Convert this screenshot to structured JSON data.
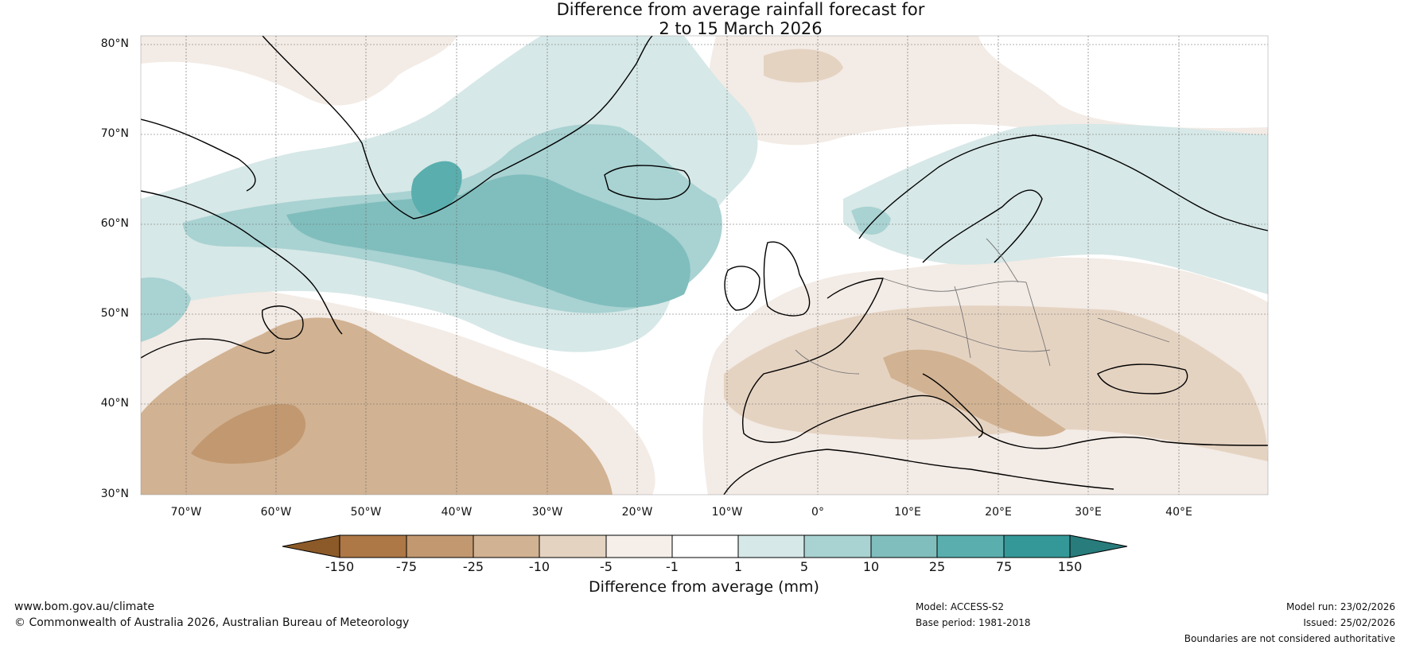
{
  "title": {
    "line1": "Difference from average rainfall forecast for",
    "line2": "2 to 15 March 2026"
  },
  "axes": {
    "latitudes": [
      "80°N",
      "70°N",
      "60°N",
      "50°N",
      "40°N",
      "30°N"
    ],
    "longitudes": [
      "70°W",
      "60°W",
      "50°W",
      "40°W",
      "30°W",
      "20°W",
      "10°W",
      "0°",
      "10°E",
      "20°E",
      "30°E",
      "40°E"
    ]
  },
  "map": {
    "extent": {
      "lon_min": -75,
      "lon_max": 50,
      "lat_min": 30,
      "lat_max": 81
    },
    "regions": [
      {
        "name": "north-atlantic-wet-band",
        "category": "5 to 10"
      },
      {
        "name": "greenland-southeast-wet-core",
        "category": "25 to 75"
      },
      {
        "name": "subtropical-atlantic-dry",
        "category": "-25 to -10"
      },
      {
        "name": "mediterranean-dry",
        "category": "-10 to -5"
      },
      {
        "name": "scandinavia-wet",
        "category": "1 to 5"
      }
    ]
  },
  "colorbar": {
    "ticks": [
      "-150",
      "-75",
      "-25",
      "-10",
      "-5",
      "-1",
      "1",
      "5",
      "10",
      "25",
      "75",
      "150"
    ],
    "colors": [
      "#8c5a28",
      "#ad7746",
      "#c19870",
      "#d1b292",
      "#e5d3c2",
      "#f5eee9",
      "#ffffff",
      "#d6e8e7",
      "#a9d2d2",
      "#80bebd",
      "#5aaeae",
      "#359898",
      "#287c7c"
    ],
    "title": "Difference from average (mm)"
  },
  "footer": {
    "website": "www.bom.gov.au/climate",
    "copyright": "© Commonwealth of Australia 2026, Australian Bureau of Meteorology",
    "model": "Model: ACCESS-S2",
    "base_period": "Base period: 1981-2018",
    "model_run": "Model run: 23/02/2026",
    "issued": "Issued: 25/02/2026",
    "boundaries": "Boundaries are not considered authoritative"
  }
}
